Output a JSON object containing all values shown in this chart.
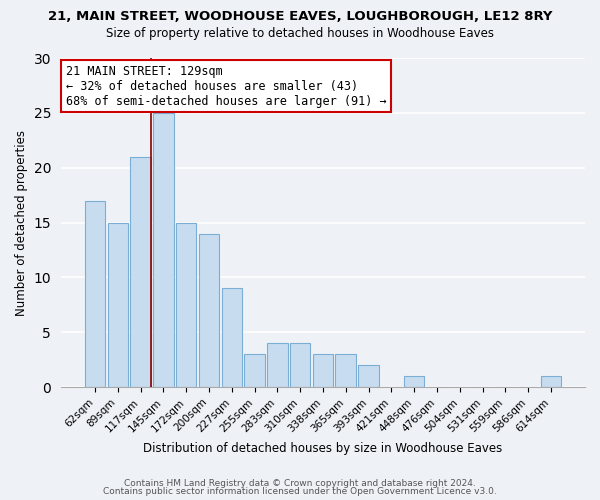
{
  "title1": "21, MAIN STREET, WOODHOUSE EAVES, LOUGHBOROUGH, LE12 8RY",
  "title2": "Size of property relative to detached houses in Woodhouse Eaves",
  "xlabel": "Distribution of detached houses by size in Woodhouse Eaves",
  "ylabel": "Number of detached properties",
  "footer1": "Contains HM Land Registry data © Crown copyright and database right 2024.",
  "footer2": "Contains public sector information licensed under the Open Government Licence v3.0.",
  "bar_labels": [
    "62sqm",
    "89sqm",
    "117sqm",
    "145sqm",
    "172sqm",
    "200sqm",
    "227sqm",
    "255sqm",
    "283sqm",
    "310sqm",
    "338sqm",
    "365sqm",
    "393sqm",
    "421sqm",
    "448sqm",
    "476sqm",
    "504sqm",
    "531sqm",
    "559sqm",
    "586sqm",
    "614sqm"
  ],
  "bar_values": [
    17,
    15,
    21,
    25,
    15,
    14,
    9,
    3,
    4,
    4,
    3,
    3,
    2,
    0,
    1,
    0,
    0,
    0,
    0,
    0,
    1
  ],
  "bar_color": "#c8dcf0",
  "bar_edge_color": "#7aaed4",
  "subject_line_color": "#8b0000",
  "annotation_text": "21 MAIN STREET: 129sqm\n← 32% of detached houses are smaller (43)\n68% of semi-detached houses are larger (91) →",
  "annotation_box_color": "white",
  "annotation_box_edge": "#cc0000",
  "ylim": [
    0,
    30
  ],
  "yticks": [
    0,
    5,
    10,
    15,
    20,
    25,
    30
  ],
  "background_color": "#eef2f7",
  "grid_color": "#ffffff",
  "spine_color": "#aaaaaa"
}
